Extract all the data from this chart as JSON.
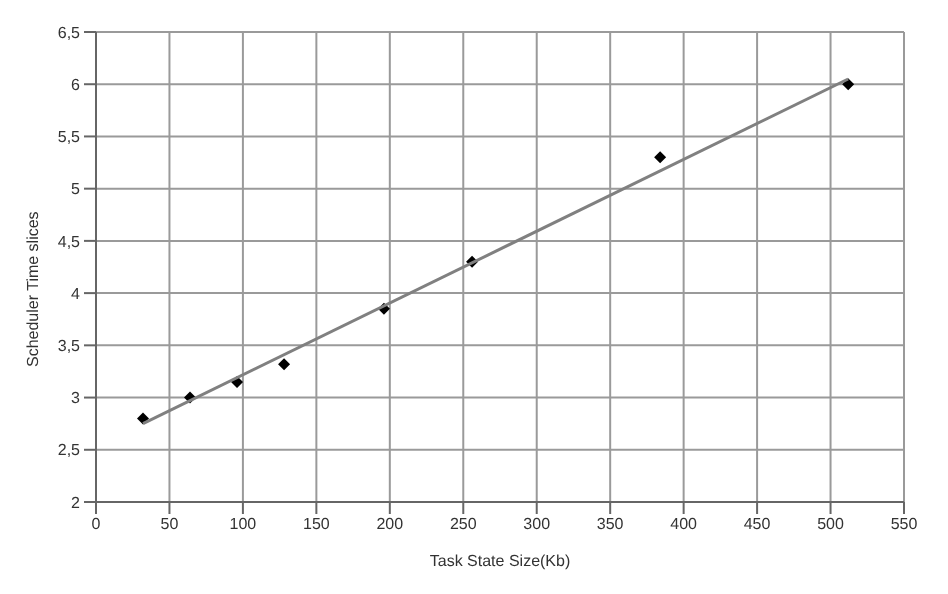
{
  "chart_data": {
    "type": "scatter",
    "xlabel": "Task State Size(Kb)",
    "ylabel": "Scheduler Time slices",
    "xlim": [
      0,
      550
    ],
    "xticks": [
      0,
      50,
      100,
      150,
      200,
      250,
      300,
      350,
      400,
      450,
      500,
      550
    ],
    "ylim": [
      2,
      6.5
    ],
    "yticks": [
      {
        "value": 2,
        "label": "2"
      },
      {
        "value": 2.5,
        "label": "2,5"
      },
      {
        "value": 3,
        "label": "3"
      },
      {
        "value": 3.5,
        "label": "3,5"
      },
      {
        "value": 4,
        "label": "4"
      },
      {
        "value": 4.5,
        "label": "4,5"
      },
      {
        "value": 5,
        "label": "5"
      },
      {
        "value": 5.5,
        "label": "5,5"
      },
      {
        "value": 6,
        "label": "6"
      },
      {
        "value": 6.5,
        "label": "6,5"
      }
    ],
    "grid": true,
    "legend": false,
    "series": [
      {
        "marker": "diamond",
        "color": "#000000",
        "x": [
          32,
          64,
          96,
          128,
          196,
          256,
          384,
          512
        ],
        "values": [
          2.8,
          3.0,
          3.15,
          3.32,
          3.85,
          4.3,
          5.3,
          6.0
        ]
      },
      {
        "type": "line",
        "marker": "none",
        "color": "#808080",
        "x": [
          32,
          512
        ],
        "values": [
          2.75,
          6.05
        ]
      }
    ]
  }
}
